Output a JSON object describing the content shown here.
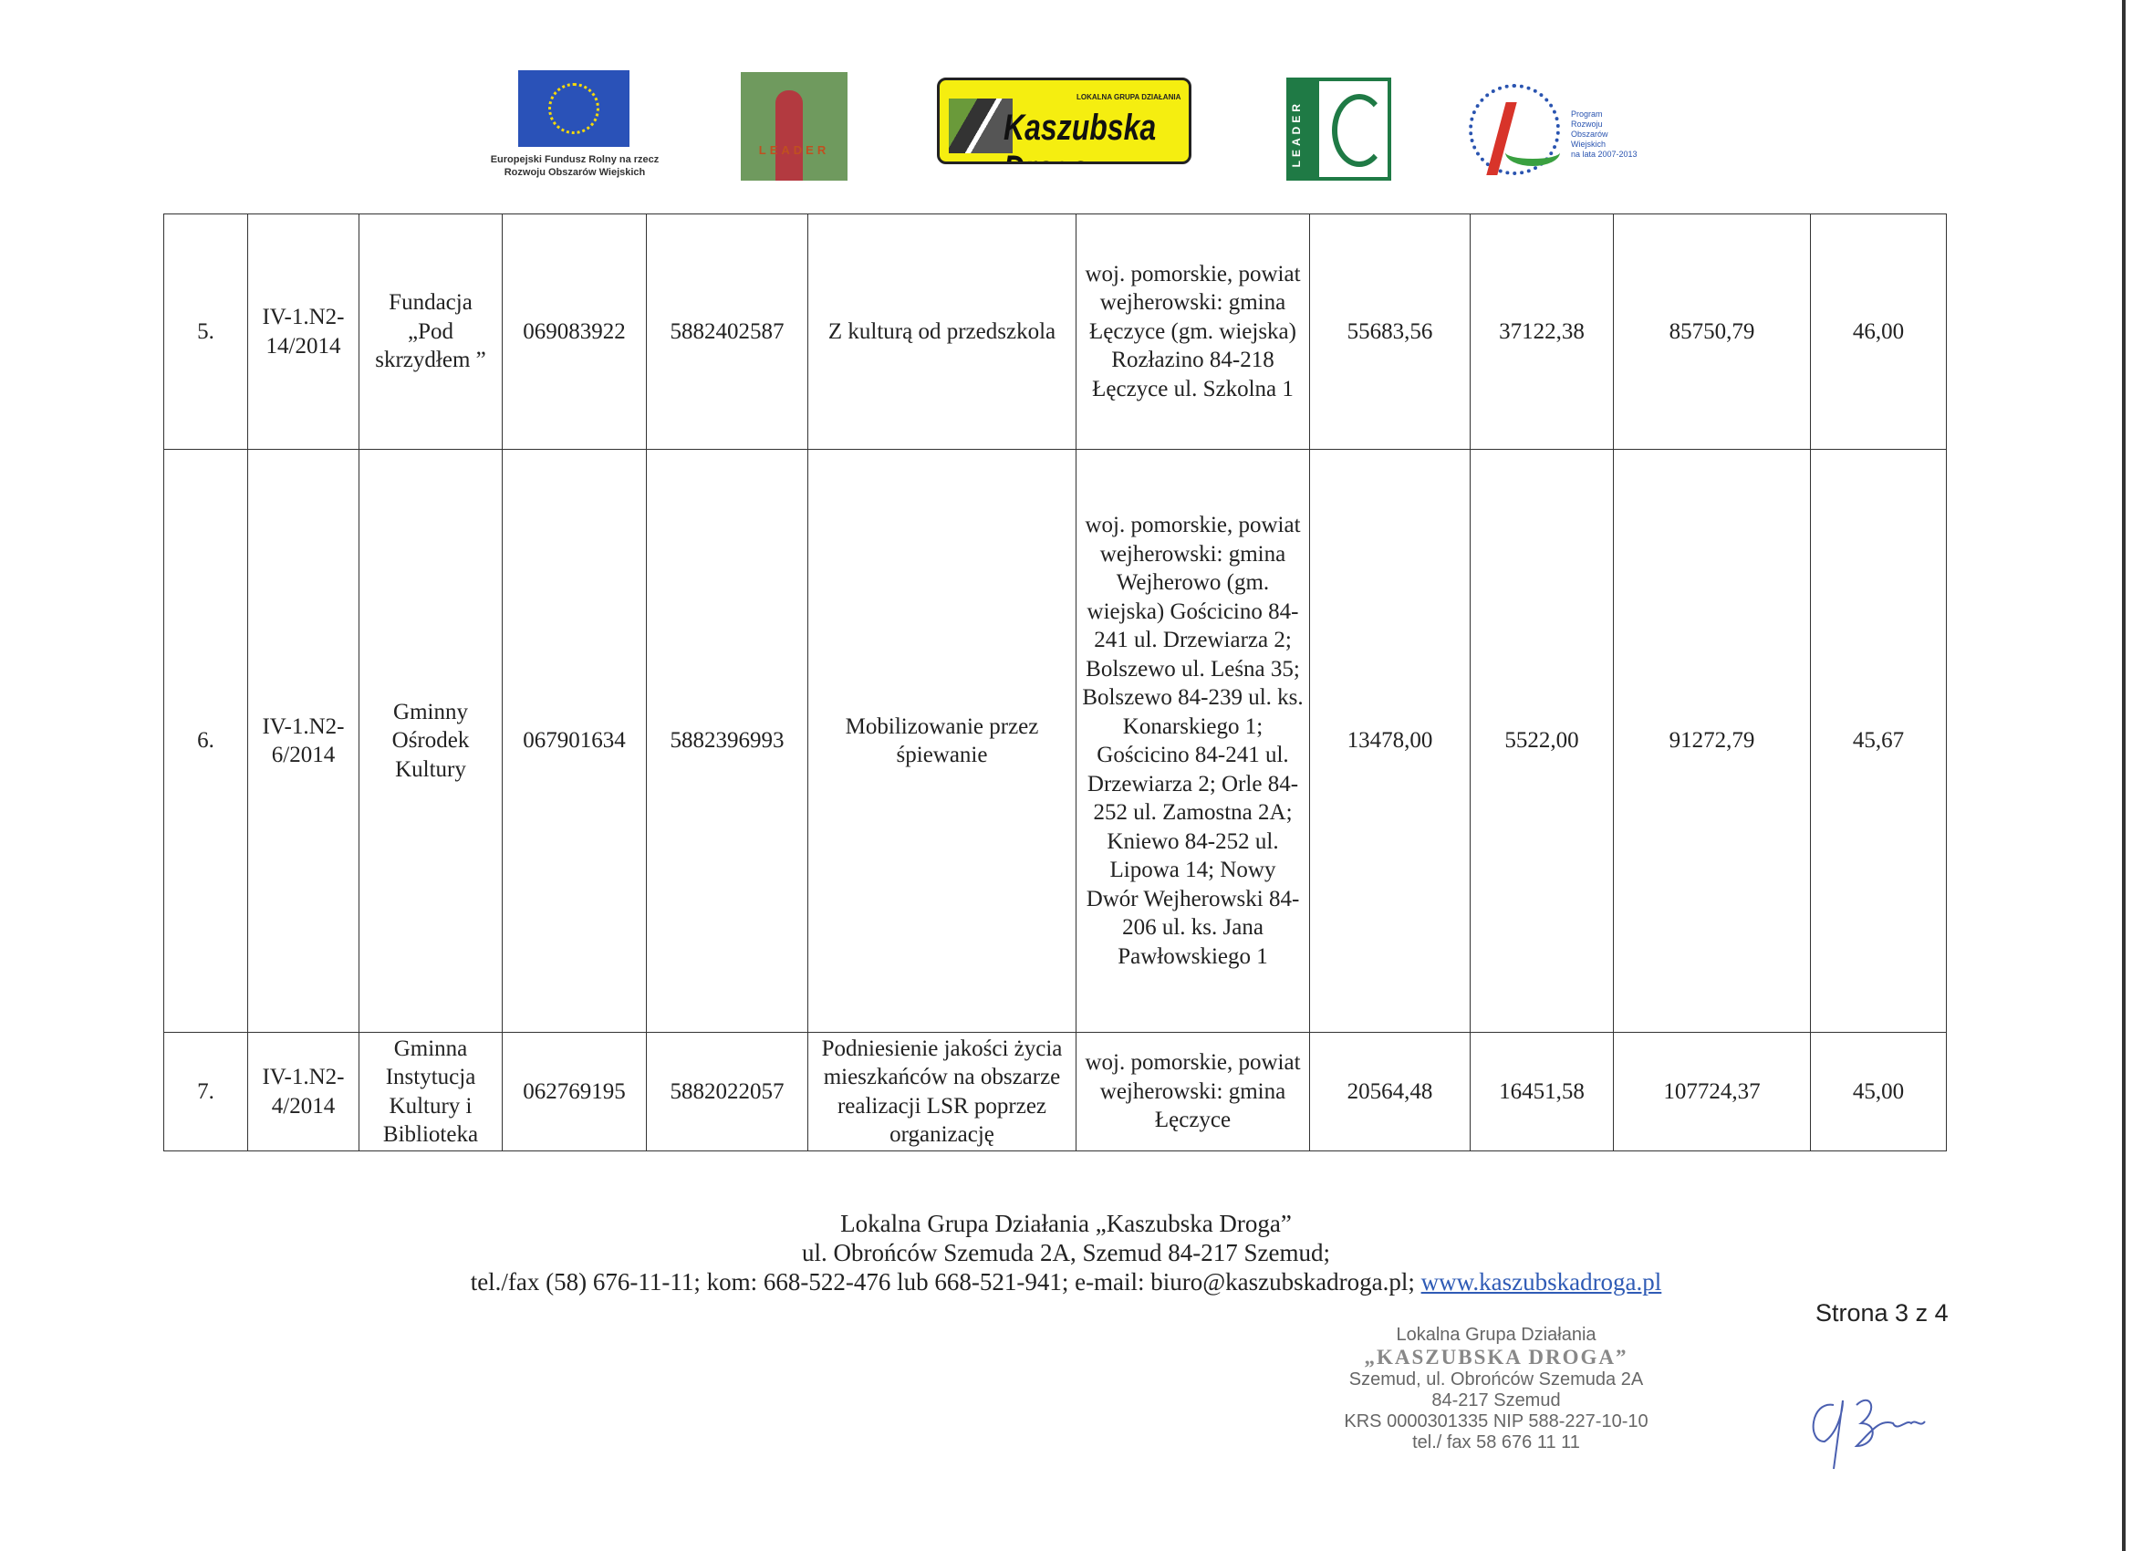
{
  "logos": {
    "eu_caption": [
      "Europejski Fundusz Rolny na rzecz",
      "Rozwoju Obszarów Wiejskich"
    ],
    "leader1": "LEADER",
    "lgd_small": "LOKALNA GRUPA DZIAŁANIA",
    "lgd_name": "Kaszubska Droga",
    "leader2": "LEADER",
    "prow": [
      "Program",
      "Rozwoju",
      "Obszarów",
      "Wiejskich",
      "na lata 2007-2013"
    ]
  },
  "rows": [
    {
      "lp": "5.",
      "nr": "IV-1.N2-14/2014",
      "name": "Fundacja „Pod skrzydłem ”",
      "regon": "069083922",
      "nip": "5882402587",
      "title": "Z kulturą od przedszkola",
      "place": "woj. pomorskie, powiat wejherowski: gmina Łęczyce (gm. wiejska) Rozłazino 84-218 Łęczyce ul. Szkolna 1",
      "v1": "55683,56",
      "v2": "37122,38",
      "v3": "85750,79",
      "score": "46,00"
    },
    {
      "lp": "6.",
      "nr": "IV-1.N2-6/2014",
      "name": "Gminny Ośrodek Kultury",
      "regon": "067901634",
      "nip": "5882396993",
      "title": "Mobilizowanie przez śpiewanie",
      "place": "woj. pomorskie, powiat wejherowski: gmina Wejherowo (gm. wiejska) Gościcino 84-241 ul. Drzewiarza 2; Bolszewo ul. Leśna 35; Bolszewo 84-239 ul. ks. Konarskiego 1; Gościcino 84-241 ul. Drzewiarza 2; Orle 84-252 ul. Zamostna 2A; Kniewo 84-252 ul. Lipowa 14; Nowy Dwór Wejherowski 84-206 ul. ks. Jana Pawłowskiego 1",
      "v1": "13478,00",
      "v2": "5522,00",
      "v3": "91272,79",
      "score": "45,67"
    },
    {
      "lp": "7.",
      "nr": "IV-1.N2-4/2014",
      "name": "Gminna Instytucja Kultury i Biblioteka",
      "regon": "062769195",
      "nip": "5882022057",
      "title": "Podniesienie jakości życia mieszkańców na obszarze realizacji LSR poprzez organizację",
      "place": "woj. pomorskie, powiat wejherowski: gmina Łęczyce",
      "v1": "20564,48",
      "v2": "16451,58",
      "v3": "107724,37",
      "score": "45,00"
    }
  ],
  "footer": {
    "line1": "Lokalna Grupa Działania „Kaszubska Droga”",
    "line2": "ul. Obrońców Szemuda 2A, Szemud 84-217 Szemud;",
    "line3": "tel./fax (58) 676-11-11; kom: 668-522-476 lub 668-521-941;  e-mail: biuro@kaszubskadroga.pl; ",
    "link": "www.kaszubskadroga.pl"
  },
  "page": "Strona 3 z 4",
  "stamp": [
    "Lokalna Grupa Działania",
    "„KASZUBSKA DROGA”",
    "Szemud, ul. Obrońców Szemuda 2A",
    "84-217 Szemud",
    "KRS 0000301335 NIP 588-227-10-10",
    "tel./ fax 58 676 11 11"
  ],
  "colors": {
    "link": "#2f5bb5",
    "eu_blue": "#2a52b8",
    "lgd_yellow": "#f5ee10",
    "leader_green": "#1f7a45"
  }
}
